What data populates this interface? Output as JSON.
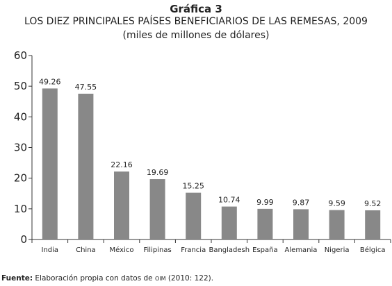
{
  "figure": {
    "label": "Gráfica 3",
    "title": "LOS DIEZ PRINCIPALES PAÍSES BENEFICIARIOS DE LAS REMESAS, 2009",
    "unit_note": "(miles de millones de dólares)"
  },
  "source": {
    "label": "Fuente:",
    "text_before": "Elaboración propia con datos de",
    "org": "OIM",
    "text_after": "(2010: 122)."
  },
  "colors": {
    "bar": "#888888",
    "axis": "#333333",
    "text": "#222222"
  },
  "chart_data": {
    "type": "bar",
    "title": "LOS DIEZ PRINCIPALES PAÍSES BENEFICIARIOS DE LAS REMESAS, 2009",
    "subtitle": "(miles de millones de dólares)",
    "xlabel": "",
    "ylabel": "",
    "categories": [
      "India",
      "China",
      "México",
      "Filipinas",
      "Francia",
      "Bangladesh",
      "España",
      "Alemania",
      "Nigeria",
      "Bélgica"
    ],
    "values": [
      49.26,
      47.55,
      22.16,
      19.69,
      15.25,
      10.74,
      9.99,
      9.87,
      9.59,
      9.52
    ],
    "data_labels": [
      "49.26",
      "47.55",
      "22.16",
      "19.69",
      "15.25",
      "10.74",
      "9.99",
      "9.87",
      "9.59",
      "9.52"
    ],
    "ylim": [
      0,
      60
    ],
    "yticks": [
      0,
      10,
      20,
      30,
      40,
      50,
      60
    ],
    "grid": false,
    "legend": "none"
  }
}
